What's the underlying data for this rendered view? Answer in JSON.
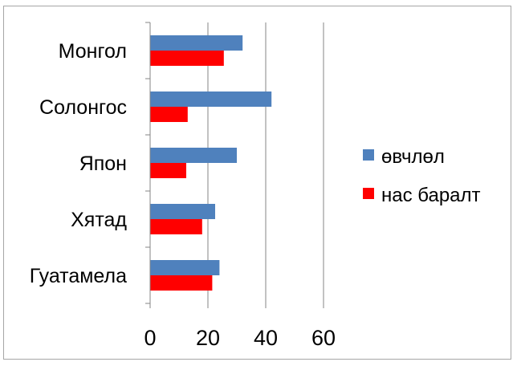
{
  "chart_data": {
    "type": "bar",
    "orientation": "horizontal",
    "categories": [
      "Монгол",
      "Солонгос",
      "Япон",
      "Хятад",
      "Гуатамела"
    ],
    "series": [
      {
        "name": "өвчлөл",
        "color": "#4f81bd",
        "values": [
          32,
          42,
          30,
          22.5,
          24
        ]
      },
      {
        "name": "нас баралт",
        "color": "#ff0000",
        "values": [
          25.5,
          13,
          12.5,
          18,
          21.5
        ]
      }
    ],
    "xlim": [
      0,
      60
    ],
    "xticks": [
      0,
      20,
      40,
      60
    ],
    "grid": "vertical",
    "legend": "right"
  }
}
